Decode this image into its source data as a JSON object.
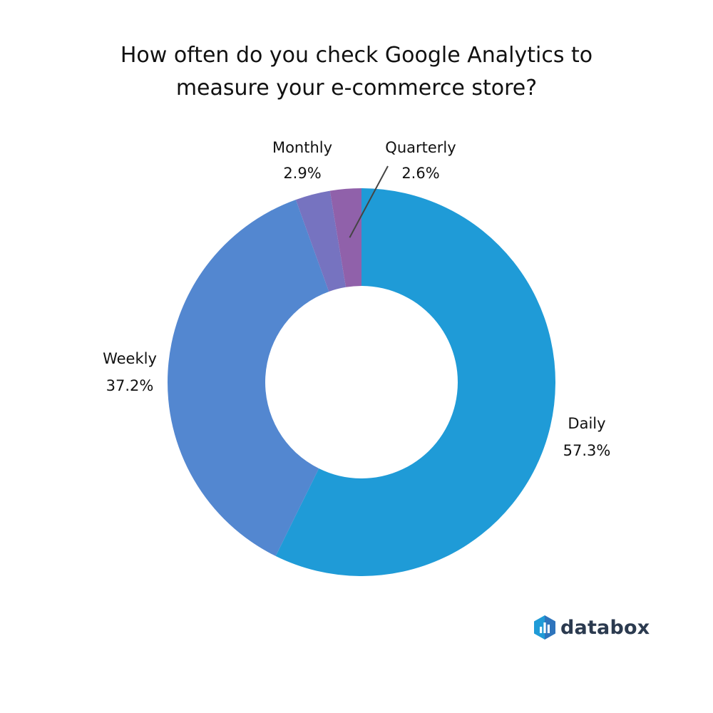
{
  "chart_data": {
    "type": "pie",
    "donut": true,
    "title_lines": [
      "How often do you check Google Analytics to",
      "measure your e-commerce store?"
    ],
    "slices": [
      {
        "label": "Daily",
        "value_label": "57.3%",
        "value": 57.3,
        "color": "#1f9bd7"
      },
      {
        "label": "Weekly",
        "value_label": "37.2%",
        "value": 37.2,
        "color": "#5387d0"
      },
      {
        "label": "Monthly",
        "value_label": "2.9%",
        "value": 2.9,
        "color": "#7673c0"
      },
      {
        "label": "Quarterly",
        "value_label": "2.6%",
        "value": 2.6,
        "color": "#9061aa"
      }
    ],
    "start": "12 o'clock",
    "direction": "clockwise",
    "legend": "none"
  },
  "brand": {
    "name": "databox",
    "color": "#2b3a4f",
    "icon": "databox-logo-icon"
  }
}
